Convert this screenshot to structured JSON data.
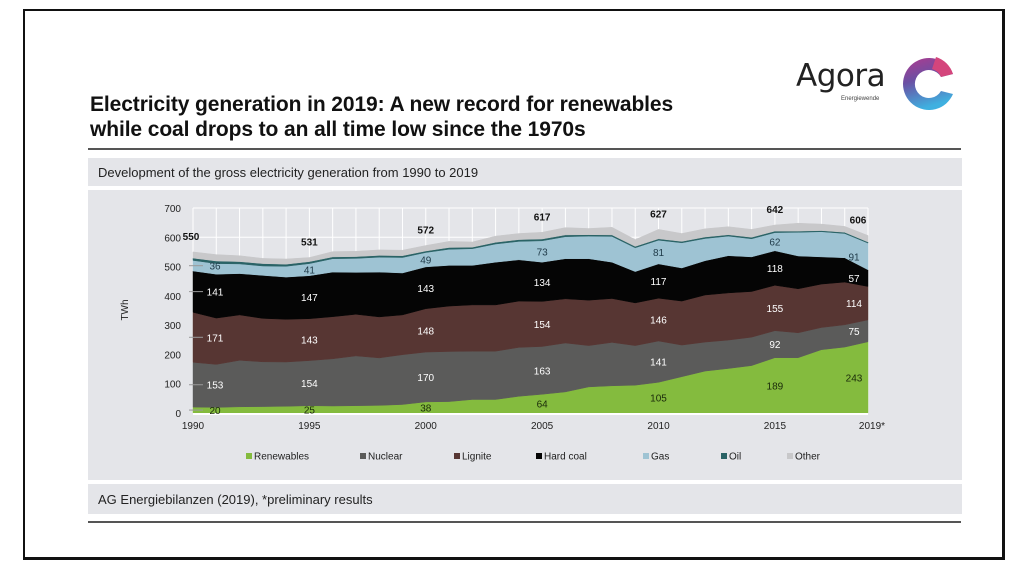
{
  "slide": {
    "title_line1": "Electricity generation in 2019: A new record for renewables",
    "title_line2": "while coal drops to an all time low since the 1970s",
    "subtitle": "Development of the gross electricity generation from 1990 to 2019",
    "source": "AG Energiebilanzen (2019), *preliminary results",
    "logo": {
      "word": "Agora",
      "sub": "Energiewende",
      "icon": "agora-c-logo-icon"
    }
  },
  "chart_data": {
    "type": "area",
    "stacked": true,
    "title": "Development of the gross electricity generation from 1990 to 2019",
    "xlabel": "",
    "ylabel": "TWh",
    "ylim": [
      0,
      700
    ],
    "yticks": [
      0,
      100,
      200,
      300,
      400,
      500,
      600,
      700
    ],
    "xticks": [
      {
        "year": 1990,
        "label": "1990"
      },
      {
        "year": 1995,
        "label": "1995"
      },
      {
        "year": 2000,
        "label": "2000"
      },
      {
        "year": 2005,
        "label": "2005"
      },
      {
        "year": 2010,
        "label": "2010"
      },
      {
        "year": 2015,
        "label": "2015"
      },
      {
        "year": 2019,
        "label": "2019*"
      }
    ],
    "grid": true,
    "legend_position": "bottom",
    "x": [
      1990,
      1991,
      1992,
      1993,
      1994,
      1995,
      1996,
      1997,
      1998,
      1999,
      2000,
      2001,
      2002,
      2003,
      2004,
      2005,
      2006,
      2007,
      2008,
      2009,
      2010,
      2011,
      2012,
      2013,
      2014,
      2015,
      2016,
      2017,
      2018,
      2019
    ],
    "series": [
      {
        "name": "Renewables",
        "color": "#84bb3e",
        "values": [
          20,
          19,
          21,
          22,
          23,
          25,
          24,
          25,
          26,
          29,
          38,
          39,
          46,
          46,
          57,
          64,
          72,
          89,
          93,
          95,
          105,
          124,
          143,
          152,
          162,
          189,
          189,
          216,
          225,
          243
        ]
      },
      {
        "name": "Nuclear",
        "color": "#5b5b5a",
        "values": [
          153,
          147,
          159,
          153,
          151,
          154,
          161,
          170,
          162,
          170,
          170,
          171,
          165,
          165,
          167,
          163,
          167,
          141,
          148,
          135,
          141,
          108,
          99,
          97,
          97,
          92,
          85,
          76,
          76,
          75
        ]
      },
      {
        "name": "Lignite",
        "color": "#573633",
        "values": [
          171,
          158,
          155,
          148,
          146,
          143,
          144,
          142,
          140,
          136,
          148,
          155,
          158,
          158,
          158,
          154,
          151,
          155,
          150,
          146,
          146,
          150,
          161,
          161,
          156,
          155,
          150,
          148,
          146,
          114
        ]
      },
      {
        "name": "Hard coal",
        "color": "#050505",
        "values": [
          141,
          150,
          141,
          147,
          144,
          147,
          152,
          143,
          153,
          143,
          143,
          139,
          135,
          146,
          141,
          134,
          137,
          142,
          124,
          107,
          117,
          113,
          117,
          127,
          118,
          118,
          112,
          93,
          83,
          57
        ]
      },
      {
        "name": "Gas",
        "color": "#9ec3d3",
        "values": [
          36,
          36,
          33,
          32,
          37,
          41,
          46,
          48,
          51,
          53,
          49,
          55,
          57,
          62,
          63,
          73,
          75,
          77,
          88,
          81,
          81,
          86,
          76,
          67,
          62,
          62,
          81,
          86,
          83,
          91
        ]
      },
      {
        "name": "Oil",
        "color": "#2a6366",
        "values": [
          8,
          9,
          8,
          8,
          7,
          7,
          6,
          6,
          6,
          6,
          5,
          6,
          5,
          6,
          6,
          6,
          6,
          5,
          5,
          5,
          5,
          5,
          5,
          5,
          5,
          5,
          4,
          4,
          4,
          4
        ]
      },
      {
        "name": "Other",
        "color": "#c8c8ca",
        "values": [
          21,
          22,
          20,
          18,
          18,
          14,
          18,
          18,
          19,
          19,
          19,
          21,
          18,
          21,
          21,
          23,
          25,
          21,
          26,
          23,
          32,
          27,
          28,
          27,
          27,
          21,
          27,
          22,
          20,
          22
        ]
      }
    ],
    "totals": [
      {
        "year": 1990,
        "value": 550
      },
      {
        "year": 1995,
        "value": 531
      },
      {
        "year": 2000,
        "value": 572
      },
      {
        "year": 2005,
        "value": 617
      },
      {
        "year": 2010,
        "value": 627
      },
      {
        "year": 2015,
        "value": 642
      },
      {
        "year": 2019,
        "value": 606
      }
    ],
    "data_labels": [
      {
        "year": 1990,
        "values": {
          "Renewables": 20,
          "Nuclear": 153,
          "Lignite": 171,
          "Hard coal": 141,
          "Gas": 36
        }
      },
      {
        "year": 1995,
        "values": {
          "Renewables": 25,
          "Nuclear": 154,
          "Lignite": 143,
          "Hard coal": 147,
          "Gas": 41
        }
      },
      {
        "year": 2000,
        "values": {
          "Renewables": 38,
          "Nuclear": 170,
          "Lignite": 148,
          "Hard coal": 143,
          "Gas": 49
        }
      },
      {
        "year": 2005,
        "values": {
          "Renewables": 64,
          "Nuclear": 163,
          "Lignite": 154,
          "Hard coal": 134,
          "Gas": 73
        }
      },
      {
        "year": 2010,
        "values": {
          "Renewables": 105,
          "Nuclear": 141,
          "Lignite": 146,
          "Hard coal": 117,
          "Gas": 81
        }
      },
      {
        "year": 2015,
        "values": {
          "Renewables": 189,
          "Nuclear": 92,
          "Lignite": 155,
          "Hard coal": 118,
          "Gas": 62
        }
      },
      {
        "year": 2019,
        "values": {
          "Renewables": 243,
          "Nuclear": 75,
          "Lignite": 114,
          "Hard coal": 57,
          "Gas": 91
        }
      }
    ]
  }
}
